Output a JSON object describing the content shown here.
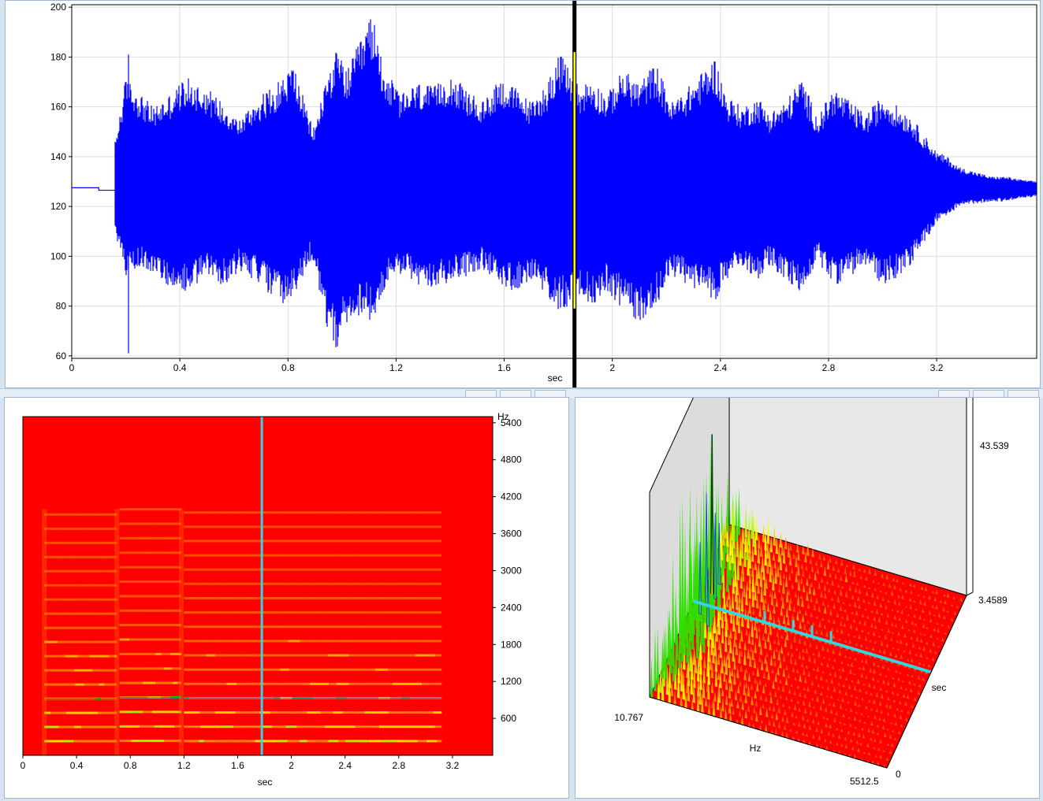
{
  "chart_data": [
    {
      "type": "line",
      "name": "waveform",
      "xlabel": "sec",
      "ylabel": "",
      "xlim": [
        0,
        3.57
      ],
      "ylim": [
        59,
        201
      ],
      "x_ticks": [
        "0",
        "0.4",
        "0.8",
        "1.2",
        "1.6",
        "2",
        "2.4",
        "2.8",
        "3.2"
      ],
      "y_ticks": [
        "60",
        "80",
        "100",
        "120",
        "140",
        "160",
        "180",
        "200"
      ],
      "cursor_x": 1.86,
      "grid": true,
      "series_color": "#0000ff",
      "cursor_color": "#000000",
      "cursor_highlight_color": "#ffff00",
      "baseline_value": 127.5,
      "envelope": {
        "x": [
          0.16,
          0.2,
          0.26,
          0.3,
          0.36,
          0.42,
          0.5,
          0.56,
          0.62,
          0.68,
          0.74,
          0.78,
          0.82,
          0.88,
          0.9,
          0.94,
          0.98,
          1.02,
          1.08,
          1.11,
          1.16,
          1.22,
          1.28,
          1.34,
          1.4,
          1.46,
          1.52,
          1.58,
          1.64,
          1.7,
          1.76,
          1.8,
          1.84,
          1.88,
          1.92,
          1.98,
          2.04,
          2.1,
          2.16,
          2.22,
          2.28,
          2.34,
          2.38,
          2.42,
          2.48,
          2.54,
          2.58,
          2.64,
          2.7,
          2.76,
          2.82,
          2.88,
          2.94,
          3.0,
          3.06,
          3.1,
          3.16,
          3.2,
          3.24,
          3.28,
          3.34,
          3.4,
          3.46,
          3.5,
          3.57
        ],
        "upper": [
          146,
          172,
          165,
          160,
          165,
          172,
          168,
          162,
          155,
          163,
          168,
          172,
          178,
          155,
          152,
          172,
          183,
          175,
          190,
          198,
          175,
          165,
          170,
          168,
          174,
          167,
          162,
          172,
          168,
          162,
          170,
          182,
          176,
          168,
          172,
          165,
          175,
          170,
          178,
          162,
          168,
          175,
          180,
          165,
          160,
          164,
          158,
          162,
          172,
          156,
          168,
          162,
          157,
          165,
          160,
          157,
          148,
          142,
          140,
          136,
          134,
          132,
          132,
          131,
          130
        ],
        "lower": [
          110,
          92,
          96,
          93,
          88,
          85,
          92,
          88,
          94,
          90,
          84,
          80,
          82,
          98,
          95,
          72,
          62,
          72,
          78,
          72,
          88,
          93,
          88,
          86,
          90,
          92,
          95,
          88,
          86,
          90,
          83,
          78,
          80,
          84,
          80,
          86,
          78,
          73,
          80,
          92,
          88,
          86,
          82,
          90,
          95,
          91,
          96,
          90,
          85,
          98,
          88,
          92,
          96,
          88,
          92,
          96,
          106,
          114,
          116,
          120,
          121,
          122,
          122,
          123,
          124
        ]
      }
    },
    {
      "type": "heatmap",
      "name": "spectrogram",
      "xlabel": "sec",
      "ylabel": "Hz",
      "xlim": [
        0,
        3.5
      ],
      "ylim": [
        0,
        5500
      ],
      "x_ticks": [
        "0",
        "0.4",
        "0.8",
        "1.2",
        "1.6",
        "2",
        "2.4",
        "2.8",
        "3.2"
      ],
      "y_ticks": [
        "600",
        "1200",
        "1800",
        "2400",
        "3000",
        "3600",
        "4200",
        "4800",
        "5400"
      ],
      "cursor_x": 1.78,
      "colormap": [
        "#ff0000",
        "#ff8a00",
        "#ffe600",
        "#a8ff00",
        "#00e000",
        "#00c8ff",
        "#2a3cff"
      ],
      "cursor_color": "#33d6e0",
      "harmonics_hz": [
        233,
        466,
        699,
        932,
        1165,
        1398,
        1631,
        1864,
        2097,
        2330,
        2563,
        2796,
        3029,
        3262,
        3495,
        3728,
        3961
      ],
      "segments": [
        {
          "t0": 0.16,
          "t1": 0.7,
          "f0": 230
        },
        {
          "t0": 0.72,
          "t1": 1.18,
          "f0": 235
        },
        {
          "t0": 1.2,
          "t1": 3.12,
          "f0": 232
        }
      ]
    },
    {
      "type": "surface",
      "name": "spectrum-3d",
      "tick_labels": {
        "freq_min": "10.767",
        "freq_max": "5512.5",
        "freq_label": "Hz",
        "time_min": "0",
        "time_max": "3.4589",
        "time_label": "sec",
        "amp_max": "43.539"
      },
      "cursor_color": "#33d6e0",
      "base_color": "#ff0000"
    }
  ]
}
